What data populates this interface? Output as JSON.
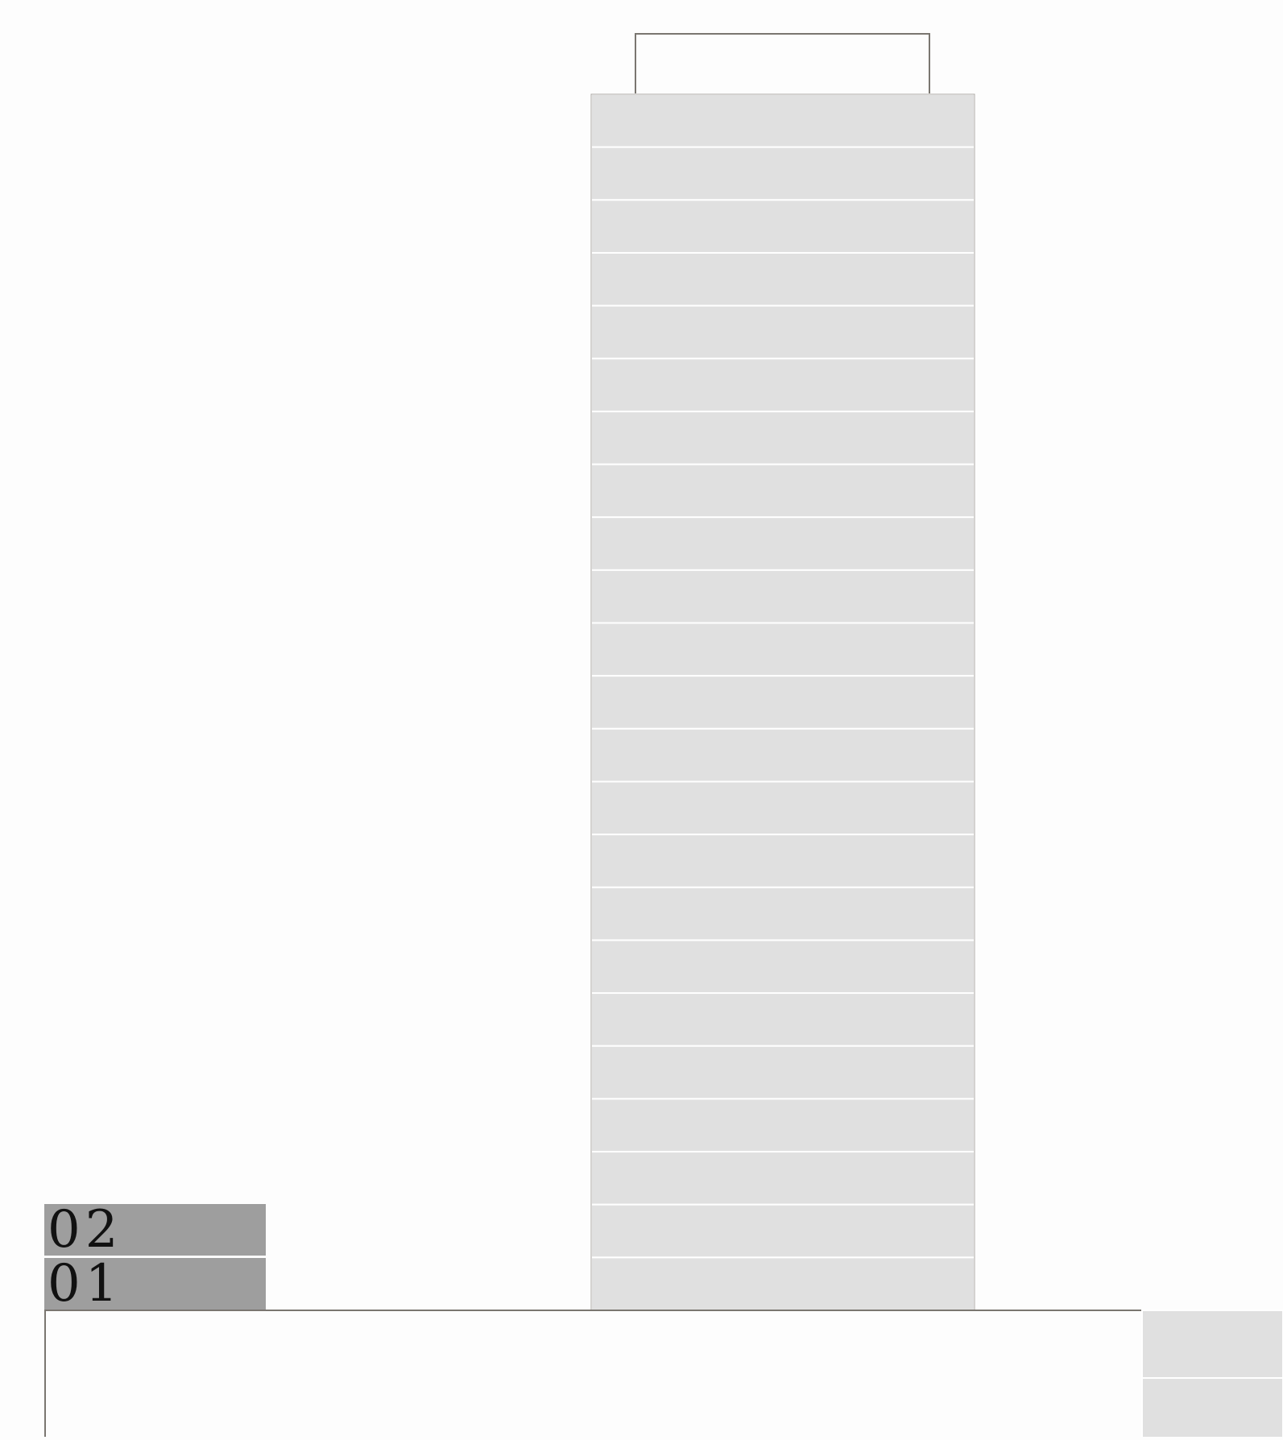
{
  "drawing": {
    "type": "building-elevation",
    "tower_floor_count": 23,
    "podium_visible_floor_count": 2,
    "level_labels": [
      "02",
      "01"
    ]
  },
  "colors": {
    "background": "#fdfdfd",
    "floor_fill": "#e0e0e0",
    "floor_divider": "#ffffff",
    "outline": "#7a7670",
    "label_fill": "#9e9e9e",
    "label_text": "#111111"
  }
}
